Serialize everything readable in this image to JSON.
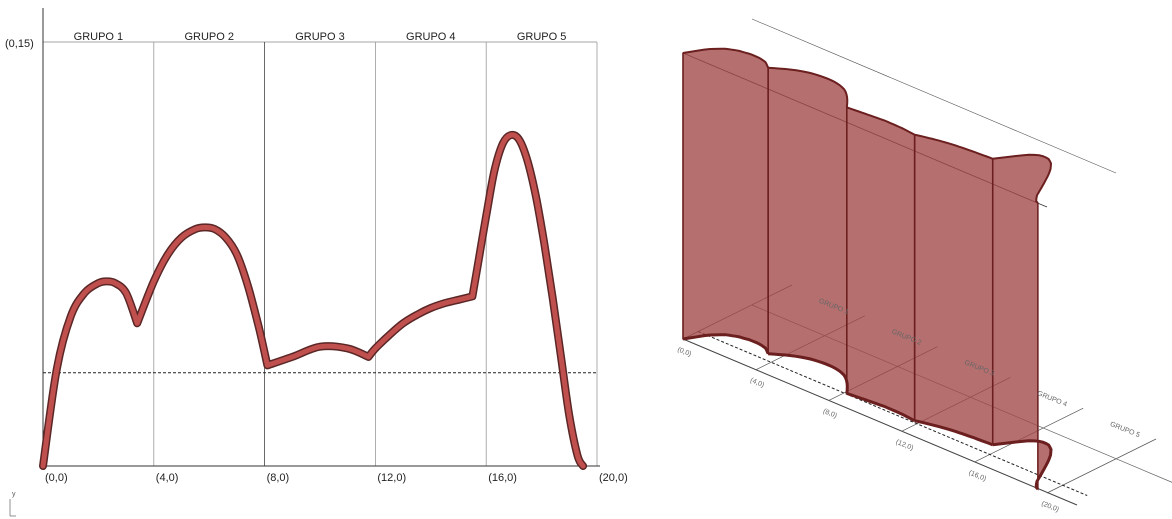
{
  "chart_data": [
    {
      "type": "line",
      "title": "",
      "xlabel": "",
      "ylabel": "",
      "axis_label_y": "y",
      "xlim": [
        0,
        20
      ],
      "ylim": [
        0,
        0.15
      ],
      "y_top_label": "(0,15)",
      "x_tick_labels": [
        "(0,0)",
        "(4,0)",
        "(8,0)",
        "(12,0)",
        "(16,0)",
        "(20,0)"
      ],
      "x_tick_values": [
        0,
        4,
        8,
        12,
        16,
        20
      ],
      "group_labels": [
        "GRUPO 1",
        "GRUPO 2",
        "GRUPO 3",
        "GRUPO 4",
        "GRUPO 5"
      ],
      "group_boundaries": [
        0,
        4,
        8,
        12,
        16,
        20
      ],
      "reference_line_y": 0.033,
      "curve_color": "#c0504d",
      "curve_outline_color": "#5a2626",
      "pieces": [
        {
          "x": [
            0,
            0.5,
            1.0,
            1.5,
            2.0,
            2.3,
            2.6,
            3.0,
            3.4
          ],
          "y": [
            0,
            0.0345,
            0.0529,
            0.0612,
            0.0647,
            0.0653,
            0.0647,
            0.0612,
            0.0505
          ]
        },
        {
          "x": [
            3.4,
            4.0,
            4.5,
            5.0,
            5.5,
            5.85,
            6.2,
            6.6,
            7.0,
            7.4,
            7.8,
            8.1
          ],
          "y": [
            0.0505,
            0.0653,
            0.0748,
            0.0808,
            0.0838,
            0.0844,
            0.0838,
            0.0808,
            0.0748,
            0.0636,
            0.0487,
            0.0356
          ]
        },
        {
          "x": [
            8.1,
            9.0,
            10.0,
            11.0,
            11.75
          ],
          "y": [
            0.0356,
            0.0386,
            0.0422,
            0.0416,
            0.0386
          ]
        },
        {
          "x": [
            11.75,
            12.0,
            12.5,
            13.0,
            13.5,
            14.0,
            14.5,
            15.0,
            15.5
          ],
          "y": [
            0.0386,
            0.0416,
            0.0463,
            0.0505,
            0.0535,
            0.0559,
            0.0576,
            0.0588,
            0.06
          ]
        },
        {
          "x": [
            15.5,
            15.7,
            16.0,
            16.3,
            16.6,
            16.9,
            17.2,
            17.5,
            17.8,
            18.1,
            18.4,
            18.7,
            19.0,
            19.3,
            19.5
          ],
          "y": [
            0.06,
            0.0713,
            0.0885,
            0.1046,
            0.1141,
            0.1171,
            0.1153,
            0.1076,
            0.0951,
            0.0785,
            0.0594,
            0.0386,
            0.0178,
            0.0036,
            0
          ]
        }
      ]
    },
    {
      "type": "surface-3d",
      "title": "",
      "x_tick_labels": [
        "(0,0)",
        "(4,0)",
        "(8,0)",
        "(12,0)",
        "(16,0)",
        "(20,0)"
      ],
      "x_tick_values": [
        0,
        4,
        8,
        12,
        16,
        20
      ],
      "group_labels": [
        "GRUPO 1",
        "GRUPO 2",
        "GRUPO 3",
        "GRUPO 4",
        "GRUPO 5"
      ],
      "walls": [
        {
          "name": "wall-group-1",
          "x_start": 0,
          "x_end": 3.4
        },
        {
          "name": "wall-group-2",
          "x_start": 3.4,
          "x_end": 8.1
        },
        {
          "name": "wall-group-3",
          "x_start": 8.1,
          "x_end": 11.75
        },
        {
          "name": "wall-group-4",
          "x_start": 11.75,
          "x_end": 15.5
        },
        {
          "name": "wall-group-5",
          "x_start": 15.5,
          "x_end": 19.5
        }
      ],
      "surface_color": "#a24646",
      "edge_color": "#6b1f1f"
    }
  ]
}
